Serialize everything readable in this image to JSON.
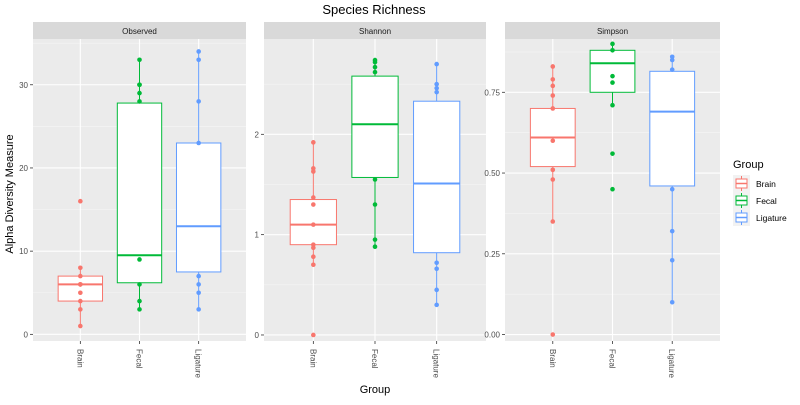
{
  "chart_data": {
    "type": "box",
    "title": "Species Richness",
    "xlabel": "Group",
    "ylabel": "Alpha Diversity Measure",
    "categories": [
      "Brain",
      "Fecal",
      "Ligature"
    ],
    "legend": {
      "title": "Group",
      "placement": "right",
      "entries": [
        {
          "name": "Brain",
          "color": "#F8766D"
        },
        {
          "name": "Fecal",
          "color": "#00BA38"
        },
        {
          "name": "Ligature",
          "color": "#619CFF"
        }
      ]
    },
    "grid": true,
    "panels": [
      {
        "title": "Observed",
        "ylim": [
          -0.8,
          35.5
        ],
        "yticks": [
          0,
          10,
          20,
          30
        ],
        "ytick_labels": [
          "0",
          "10",
          "20",
          "30"
        ],
        "series": [
          {
            "name": "Brain",
            "box": {
              "q1": 4,
              "median": 6,
              "q3": 7,
              "lower": 1,
              "upper": 8
            },
            "points": [
              1,
              3,
              4,
              5,
              6,
              6,
              6,
              7,
              8,
              16
            ]
          },
          {
            "name": "Fecal",
            "box": {
              "q1": 6.2,
              "median": 9.5,
              "q3": 27.8,
              "lower": 3,
              "upper": 33
            },
            "points": [
              3,
              4,
              6,
              9,
              28,
              29,
              30,
              30,
              33
            ]
          },
          {
            "name": "Ligature",
            "box": {
              "q1": 7.5,
              "median": 13,
              "q3": 23,
              "lower": 3,
              "upper": 34
            },
            "points": [
              3,
              5,
              6,
              7,
              23,
              28,
              33,
              34
            ]
          }
        ]
      },
      {
        "title": "Shannon",
        "ylim": [
          -0.06,
          2.95
        ],
        "yticks": [
          0,
          1,
          2
        ],
        "ytick_labels": [
          "0",
          "1",
          "2"
        ],
        "series": [
          {
            "name": "Brain",
            "box": {
              "q1": 0.9,
              "median": 1.1,
              "q3": 1.35,
              "lower": 0.7,
              "upper": 1.92
            },
            "points": [
              0,
              0.7,
              0.78,
              0.87,
              0.9,
              1.1,
              1.3,
              1.37,
              1.63,
              1.66,
              1.92
            ]
          },
          {
            "name": "Fecal",
            "box": {
              "q1": 1.57,
              "median": 2.1,
              "q3": 2.58,
              "lower": 0.88,
              "upper": 2.74
            },
            "points": [
              0.88,
              0.95,
              1.3,
              1.55,
              2.62,
              2.67,
              2.72,
              2.74
            ]
          },
          {
            "name": "Ligature",
            "box": {
              "q1": 0.82,
              "median": 1.51,
              "q3": 2.33,
              "lower": 0.3,
              "upper": 2.7
            },
            "points": [
              0.3,
              0.45,
              0.66,
              0.72,
              2.42,
              2.46,
              2.5,
              2.7
            ]
          }
        ]
      },
      {
        "title": "Simpson",
        "ylim": [
          -0.02,
          0.915
        ],
        "yticks": [
          0,
          0.25,
          0.5,
          0.75
        ],
        "ytick_labels": [
          "0.00",
          "0.25",
          "0.50",
          "0.75"
        ],
        "series": [
          {
            "name": "Brain",
            "box": {
              "q1": 0.52,
              "median": 0.61,
              "q3": 0.7,
              "lower": 0.35,
              "upper": 0.83
            },
            "points": [
              0,
              0.35,
              0.48,
              0.51,
              0.6,
              0.7,
              0.74,
              0.77,
              0.79,
              0.83
            ]
          },
          {
            "name": "Fecal",
            "box": {
              "q1": 0.75,
              "median": 0.84,
              "q3": 0.88,
              "lower": 0.71,
              "upper": 0.9
            },
            "points": [
              0.45,
              0.56,
              0.71,
              0.78,
              0.8,
              0.88,
              0.9
            ]
          },
          {
            "name": "Ligature",
            "box": {
              "q1": 0.46,
              "median": 0.69,
              "q3": 0.815,
              "lower": 0.1,
              "upper": 0.86
            },
            "points": [
              0.1,
              0.23,
              0.32,
              0.45,
              0.82,
              0.85,
              0.86
            ]
          }
        ]
      }
    ]
  }
}
